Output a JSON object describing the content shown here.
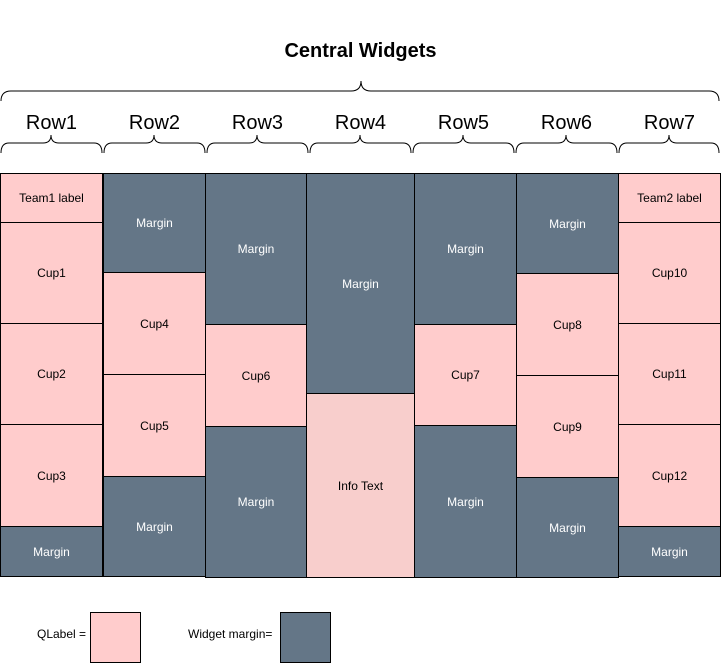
{
  "title": "Central Widgets",
  "rows": [
    "Row1",
    "Row2",
    "Row3",
    "Row4",
    "Row5",
    "Row6",
    "Row7"
  ],
  "cells": {
    "team1": "Team1 label",
    "team2": "Team2 label",
    "cup1": "Cup1",
    "cup2": "Cup2",
    "cup3": "Cup3",
    "cup4": "Cup4",
    "cup5": "Cup5",
    "cup6": "Cup6",
    "cup7": "Cup7",
    "cup8": "Cup8",
    "cup9": "Cup9",
    "cup10": "Cup10",
    "cup11": "Cup11",
    "cup12": "Cup12",
    "margin": "Margin",
    "info": "Info Text"
  },
  "legend": {
    "qlabel": "QLabel =",
    "widget_margin": "Widget margin="
  },
  "colors": {
    "qlabel": "#ffcccc",
    "margin": "#647687",
    "info": "#f8cecc"
  }
}
